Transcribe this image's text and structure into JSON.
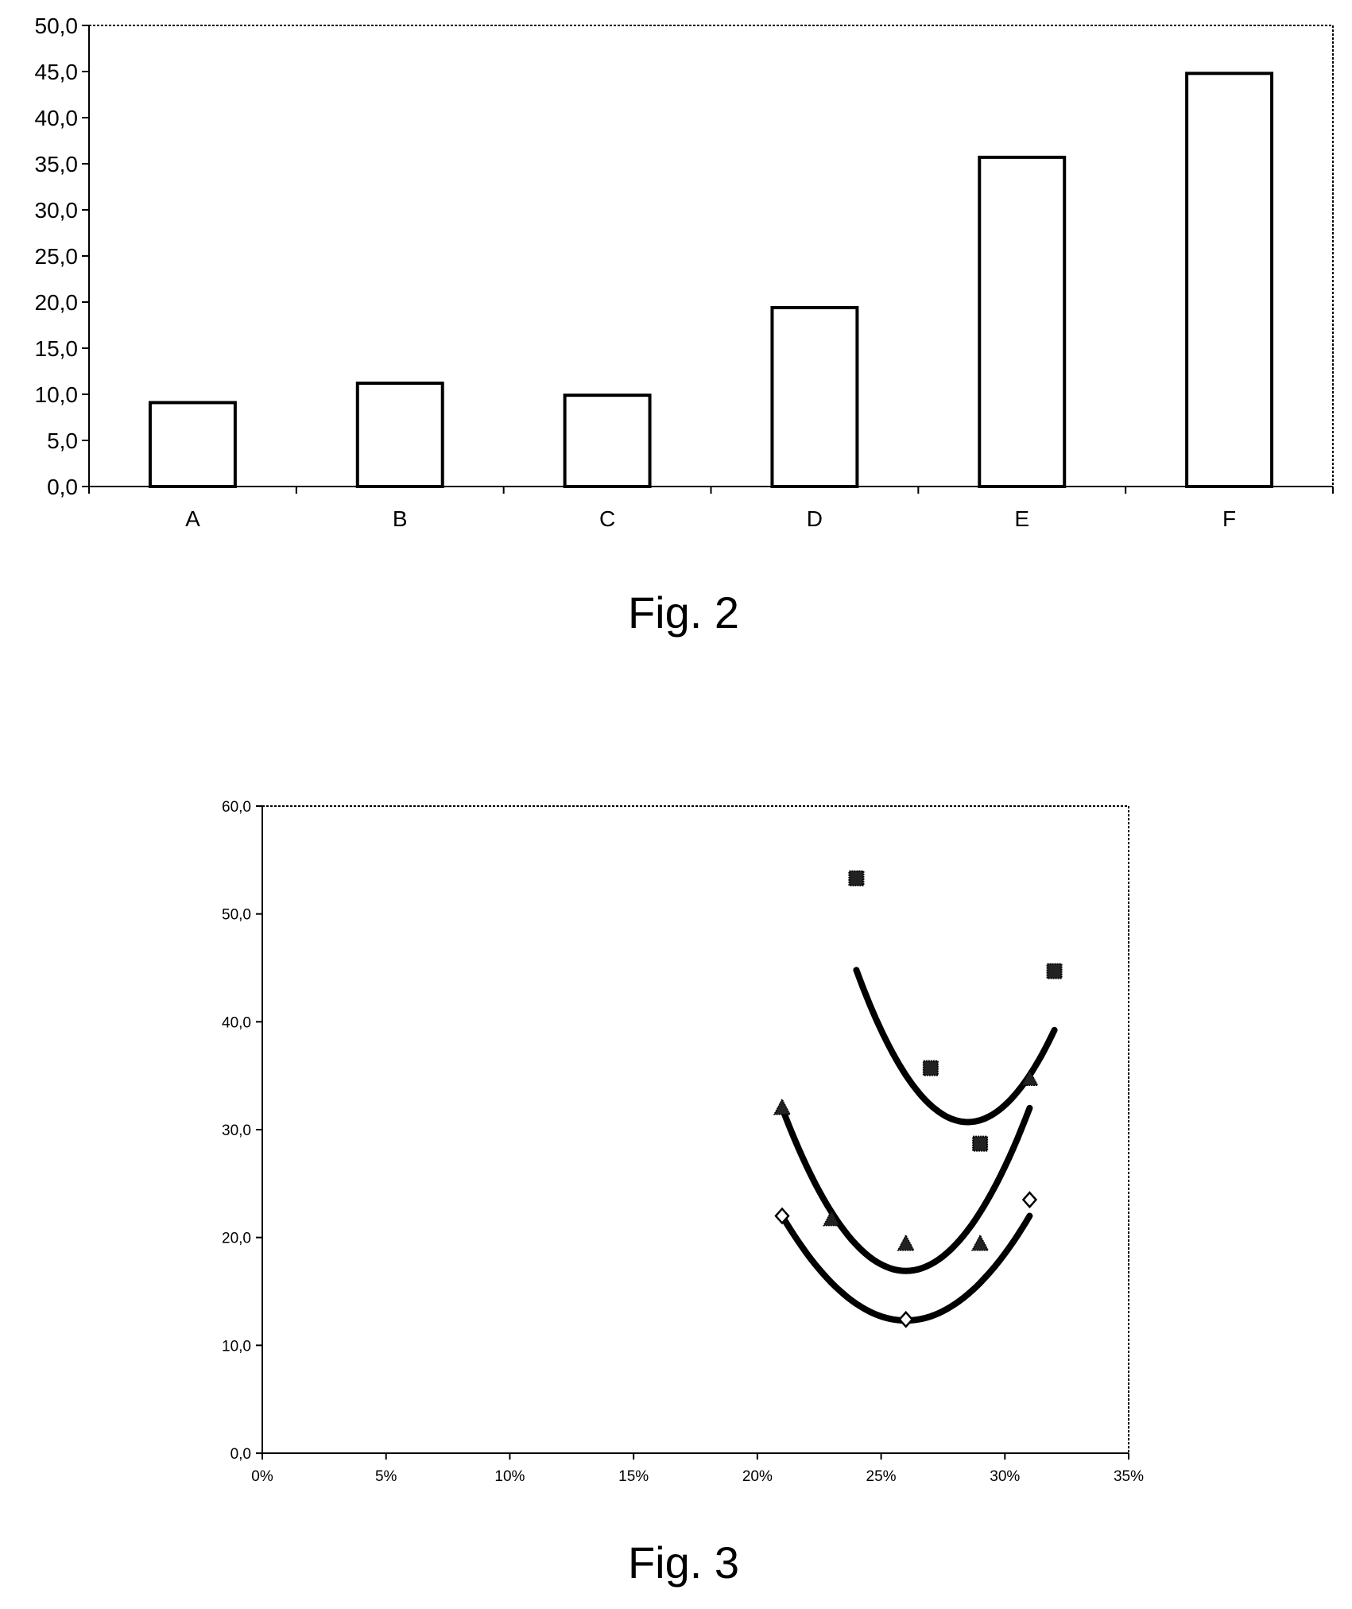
{
  "chart_data": [
    {
      "type": "bar",
      "title": "",
      "xlabel": "",
      "ylabel": "",
      "categories": [
        "A",
        "B",
        "C",
        "D",
        "E",
        "F"
      ],
      "values": [
        9.1,
        11.2,
        9.9,
        19.4,
        35.7,
        44.8
      ],
      "ylim": [
        0,
        50
      ],
      "yticks": [
        "0,0",
        "5,0",
        "10,0",
        "15,0",
        "20,0",
        "25,0",
        "30,0",
        "35,0",
        "40,0",
        "45,0",
        "50,0"
      ],
      "grid": false,
      "bar_fill": "#ffffff",
      "bar_stroke": "#000000",
      "caption": "Fig. 2"
    },
    {
      "type": "scatter",
      "title": "",
      "xlabel": "",
      "ylabel": "",
      "xlim": [
        0,
        0.35
      ],
      "ylim": [
        0,
        60
      ],
      "xticks": [
        "0%",
        "5%",
        "10%",
        "15%",
        "20%",
        "25%",
        "30%",
        "35%"
      ],
      "yticks": [
        "0,0",
        "10,0",
        "20,0",
        "30,0",
        "40,0",
        "50,0",
        "60,0"
      ],
      "grid": false,
      "series": [
        {
          "marker": "square",
          "x": [
            0.24,
            0.27,
            0.29,
            0.32
          ],
          "y": [
            53.3,
            35.7,
            28.7,
            44.7
          ],
          "trend": {
            "x_from": 0.24,
            "x_to": 0.32,
            "vertex_x": 0.285,
            "vertex_y": 30.7,
            "end_y": 44.8
          }
        },
        {
          "marker": "triangle",
          "x": [
            0.21,
            0.23,
            0.26,
            0.29,
            0.31
          ],
          "y": [
            32.0,
            21.7,
            19.4,
            19.4,
            34.7
          ],
          "trend": {
            "x_from": 0.21,
            "x_to": 0.31,
            "vertex_x": 0.26,
            "vertex_y": 16.9,
            "end_y": 32.0
          }
        },
        {
          "marker": "diamond",
          "x": [
            0.21,
            0.26,
            0.31
          ],
          "y": [
            22.0,
            12.4,
            23.5
          ],
          "trend": {
            "x_from": 0.21,
            "x_to": 0.31,
            "vertex_x": 0.26,
            "vertex_y": 12.3,
            "end_y": 22.0
          }
        }
      ],
      "caption": "Fig. 3"
    }
  ]
}
